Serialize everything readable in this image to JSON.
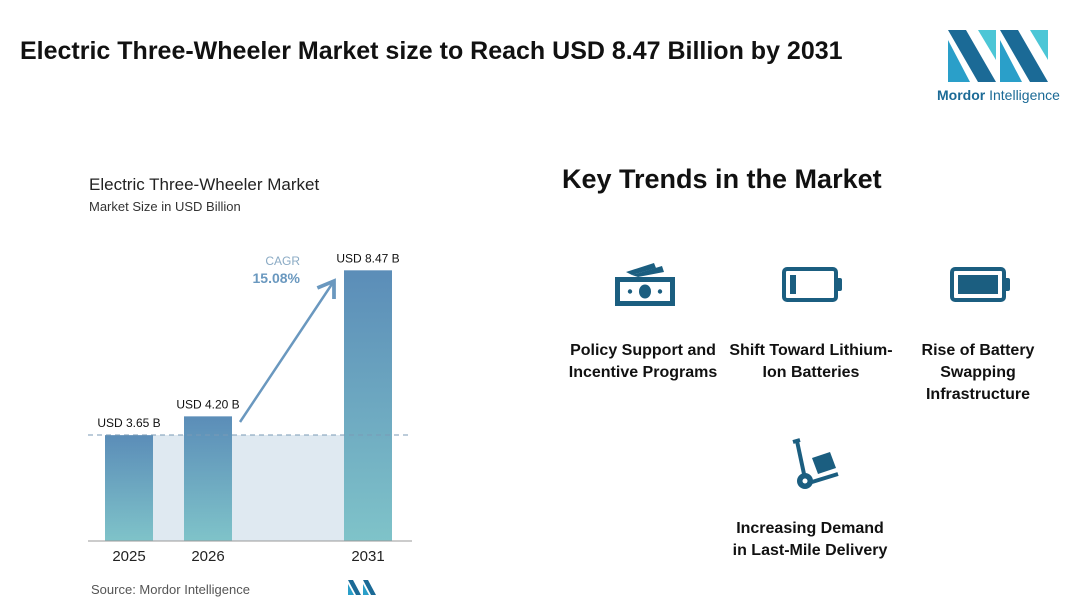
{
  "header": {
    "title": "Electric Three-Wheeler Market size to Reach USD 8.47 Billion by 2031"
  },
  "logo": {
    "text_bold": "Mordor",
    "text_light": " Intelligence"
  },
  "chart_data": {
    "type": "bar",
    "title": "Electric Three-Wheeler Market",
    "subtitle": "Market Size in USD Billion",
    "categories": [
      "2025",
      "2026",
      "2031"
    ],
    "values": [
      3.65,
      4.2,
      8.47
    ],
    "labels": [
      "USD 3.65 B",
      "USD 4.20 B",
      "USD 8.47 B"
    ],
    "annotation": {
      "label": "CAGR",
      "value": "15.08%"
    },
    "source": "Source: Mordor Intelligence",
    "colors": {
      "top": "#5b8db8",
      "bottom": "#7fc3c9",
      "shade": "#dfe9f1",
      "arrow": "#6a98bf"
    }
  },
  "trends": {
    "title": "Key Trends in the Market",
    "items": [
      {
        "label": "Policy Support and Incentive Programs",
        "icon": "money-icon"
      },
      {
        "label": "Shift Toward Lithium-Ion Batteries",
        "icon": "battery-low-icon"
      },
      {
        "label": "Rise of Battery Swapping Infrastructure",
        "icon": "battery-full-icon"
      },
      {
        "label": "Increasing Demand in Last-Mile Delivery",
        "icon": "hand-truck-icon"
      }
    ],
    "icon_color": "#1b5e80"
  }
}
